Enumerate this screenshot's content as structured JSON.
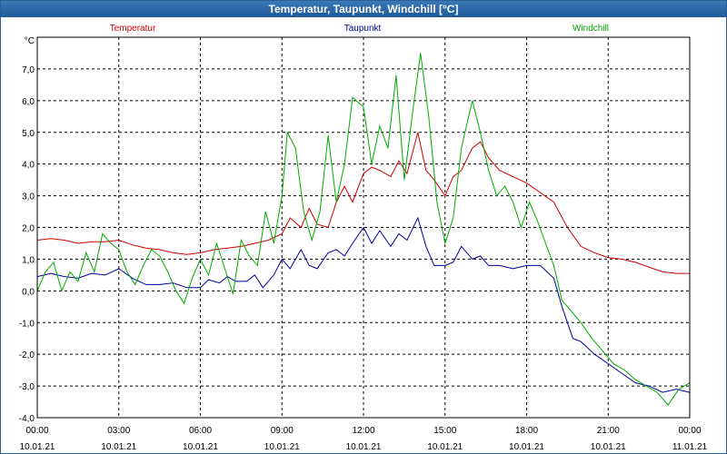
{
  "window": {
    "title": "Temperatur, Taupunkt, Windchill [°C]"
  },
  "chart_data": {
    "type": "line",
    "title": "Temperatur, Taupunkt, Windchill [°C]",
    "ylabel": "°C",
    "xlabel": "",
    "ylim": [
      -4.0,
      8.0
    ],
    "y_ticks": [
      7.0,
      6.0,
      5.0,
      4.0,
      3.0,
      2.0,
      1.0,
      0.0,
      -1.0,
      -2.0,
      -3.0,
      -4.0
    ],
    "y_tick_labels": [
      "7,0",
      "6,0",
      "5,0",
      "4,0",
      "3,0",
      "2,0",
      "1,0",
      "0,0",
      "-1,0",
      "-2,0",
      "-3,0",
      "-4,0"
    ],
    "xlim": [
      0,
      24
    ],
    "x_ticks": [
      {
        "hour": 0,
        "time": "00:00",
        "date": "10.01.21"
      },
      {
        "hour": 3,
        "time": "03:00",
        "date": "10.01.21"
      },
      {
        "hour": 6,
        "time": "06:00",
        "date": "10.01.21"
      },
      {
        "hour": 9,
        "time": "09:00",
        "date": "10.01.21"
      },
      {
        "hour": 12,
        "time": "12:00",
        "date": "10.01.21"
      },
      {
        "hour": 15,
        "time": "15:00",
        "date": "10.01.21"
      },
      {
        "hour": 18,
        "time": "18:00",
        "date": "10.01.21"
      },
      {
        "hour": 21,
        "time": "21:00",
        "date": "10.01.21"
      },
      {
        "hour": 24,
        "time": "00:00",
        "date": "11.01.21"
      }
    ],
    "grid": true,
    "legend_position": "top",
    "series": [
      {
        "name": "Temperatur",
        "color": "#cc0000",
        "points": [
          [
            0,
            1.6
          ],
          [
            0.5,
            1.65
          ],
          [
            1,
            1.6
          ],
          [
            1.5,
            1.5
          ],
          [
            2,
            1.55
          ],
          [
            2.5,
            1.55
          ],
          [
            3,
            1.6
          ],
          [
            3.5,
            1.45
          ],
          [
            4,
            1.35
          ],
          [
            4.5,
            1.3
          ],
          [
            5,
            1.2
          ],
          [
            5.5,
            1.15
          ],
          [
            6,
            1.2
          ],
          [
            6.5,
            1.3
          ],
          [
            7,
            1.35
          ],
          [
            7.5,
            1.4
          ],
          [
            8,
            1.5
          ],
          [
            8.5,
            1.6
          ],
          [
            9,
            1.8
          ],
          [
            9.3,
            2.3
          ],
          [
            9.7,
            2.0
          ],
          [
            10,
            2.6
          ],
          [
            10.3,
            2.1
          ],
          [
            10.7,
            2.0
          ],
          [
            11,
            2.8
          ],
          [
            11.3,
            3.3
          ],
          [
            11.6,
            2.8
          ],
          [
            12,
            3.7
          ],
          [
            12.3,
            3.9
          ],
          [
            12.6,
            3.8
          ],
          [
            13,
            3.6
          ],
          [
            13.3,
            4.1
          ],
          [
            13.6,
            3.7
          ],
          [
            14,
            5.0
          ],
          [
            14.3,
            3.8
          ],
          [
            14.6,
            3.5
          ],
          [
            15,
            3.0
          ],
          [
            15.3,
            3.6
          ],
          [
            15.6,
            3.8
          ],
          [
            16,
            4.5
          ],
          [
            16.3,
            4.7
          ],
          [
            16.6,
            4.2
          ],
          [
            17,
            3.8
          ],
          [
            17.5,
            3.6
          ],
          [
            18,
            3.4
          ],
          [
            18.5,
            3.1
          ],
          [
            19,
            2.8
          ],
          [
            19.5,
            2.0
          ],
          [
            20,
            1.4
          ],
          [
            20.5,
            1.2
          ],
          [
            21,
            1.05
          ],
          [
            21.5,
            1.0
          ],
          [
            22,
            0.9
          ],
          [
            22.5,
            0.75
          ],
          [
            23,
            0.6
          ],
          [
            23.5,
            0.55
          ],
          [
            24,
            0.55
          ]
        ]
      },
      {
        "name": "Taupunkt",
        "color": "#000099",
        "points": [
          [
            0,
            0.45
          ],
          [
            0.5,
            0.55
          ],
          [
            1,
            0.45
          ],
          [
            1.5,
            0.4
          ],
          [
            2,
            0.55
          ],
          [
            2.5,
            0.5
          ],
          [
            3,
            0.7
          ],
          [
            3.5,
            0.4
          ],
          [
            4,
            0.2
          ],
          [
            4.5,
            0.2
          ],
          [
            5,
            0.25
          ],
          [
            5.5,
            0.1
          ],
          [
            6,
            0.1
          ],
          [
            6.3,
            0.35
          ],
          [
            6.7,
            0.25
          ],
          [
            7,
            0.45
          ],
          [
            7.3,
            0.3
          ],
          [
            7.7,
            0.3
          ],
          [
            8,
            0.5
          ],
          [
            8.3,
            0.1
          ],
          [
            8.7,
            0.5
          ],
          [
            9,
            1.0
          ],
          [
            9.3,
            0.7
          ],
          [
            9.7,
            1.3
          ],
          [
            10,
            0.8
          ],
          [
            10.3,
            0.7
          ],
          [
            10.7,
            1.2
          ],
          [
            11,
            1.3
          ],
          [
            11.3,
            1.1
          ],
          [
            11.6,
            1.5
          ],
          [
            12,
            2.0
          ],
          [
            12.3,
            1.5
          ],
          [
            12.6,
            1.9
          ],
          [
            13,
            1.4
          ],
          [
            13.3,
            1.8
          ],
          [
            13.6,
            1.6
          ],
          [
            14,
            2.3
          ],
          [
            14.3,
            1.4
          ],
          [
            14.6,
            0.8
          ],
          [
            15,
            0.8
          ],
          [
            15.3,
            0.9
          ],
          [
            15.6,
            1.4
          ],
          [
            16,
            1.0
          ],
          [
            16.3,
            1.1
          ],
          [
            16.6,
            0.8
          ],
          [
            17,
            0.8
          ],
          [
            17.5,
            0.7
          ],
          [
            18,
            0.8
          ],
          [
            18.5,
            0.8
          ],
          [
            19,
            0.4
          ],
          [
            19.3,
            -0.5
          ],
          [
            19.7,
            -1.5
          ],
          [
            20,
            -1.6
          ],
          [
            20.5,
            -2.0
          ],
          [
            21,
            -2.3
          ],
          [
            21.5,
            -2.6
          ],
          [
            22,
            -2.9
          ],
          [
            22.5,
            -3.0
          ],
          [
            23,
            -3.2
          ],
          [
            23.5,
            -3.1
          ],
          [
            24,
            -3.2
          ]
        ]
      },
      {
        "name": "Windchill",
        "color": "#00aa00",
        "points": [
          [
            0,
            0.0
          ],
          [
            0.3,
            0.6
          ],
          [
            0.6,
            0.9
          ],
          [
            0.9,
            0.0
          ],
          [
            1.2,
            0.6
          ],
          [
            1.5,
            0.3
          ],
          [
            1.8,
            1.2
          ],
          [
            2.1,
            0.6
          ],
          [
            2.4,
            1.8
          ],
          [
            2.7,
            1.5
          ],
          [
            3,
            1.3
          ],
          [
            3.3,
            0.6
          ],
          [
            3.6,
            0.2
          ],
          [
            3.9,
            0.8
          ],
          [
            4.2,
            1.3
          ],
          [
            4.5,
            1.1
          ],
          [
            4.8,
            0.6
          ],
          [
            5.1,
            0.0
          ],
          [
            5.4,
            -0.4
          ],
          [
            5.7,
            0.4
          ],
          [
            6,
            1.0
          ],
          [
            6.3,
            0.5
          ],
          [
            6.6,
            1.5
          ],
          [
            6.9,
            0.7
          ],
          [
            7.2,
            -0.1
          ],
          [
            7.5,
            1.6
          ],
          [
            7.8,
            1.1
          ],
          [
            8.1,
            0.8
          ],
          [
            8.4,
            2.5
          ],
          [
            8.7,
            1.5
          ],
          [
            9,
            3.0
          ],
          [
            9.2,
            5.0
          ],
          [
            9.5,
            4.5
          ],
          [
            9.8,
            2.5
          ],
          [
            10.1,
            1.6
          ],
          [
            10.4,
            2.5
          ],
          [
            10.7,
            4.9
          ],
          [
            11,
            2.8
          ],
          [
            11.3,
            4.0
          ],
          [
            11.6,
            6.1
          ],
          [
            12,
            5.8
          ],
          [
            12.3,
            4.0
          ],
          [
            12.6,
            5.2
          ],
          [
            12.9,
            4.5
          ],
          [
            13.2,
            6.8
          ],
          [
            13.5,
            3.5
          ],
          [
            13.8,
            5.6
          ],
          [
            14.1,
            7.5
          ],
          [
            14.4,
            5.5
          ],
          [
            14.7,
            2.8
          ],
          [
            15,
            1.5
          ],
          [
            15.3,
            2.3
          ],
          [
            15.6,
            4.5
          ],
          [
            16,
            6.0
          ],
          [
            16.3,
            5.0
          ],
          [
            16.6,
            3.8
          ],
          [
            16.9,
            3.0
          ],
          [
            17.2,
            3.3
          ],
          [
            17.5,
            2.8
          ],
          [
            17.8,
            2.0
          ],
          [
            18.1,
            2.8
          ],
          [
            18.4,
            2.2
          ],
          [
            18.7,
            1.5
          ],
          [
            19,
            0.8
          ],
          [
            19.3,
            -0.3
          ],
          [
            19.6,
            -0.6
          ],
          [
            20,
            -1.0
          ],
          [
            20.4,
            -1.5
          ],
          [
            20.8,
            -1.9
          ],
          [
            21.2,
            -2.3
          ],
          [
            21.6,
            -2.5
          ],
          [
            22,
            -2.8
          ],
          [
            22.4,
            -3.0
          ],
          [
            22.8,
            -3.2
          ],
          [
            23.2,
            -3.6
          ],
          [
            23.6,
            -3.1
          ],
          [
            24,
            -2.9
          ]
        ]
      }
    ]
  }
}
